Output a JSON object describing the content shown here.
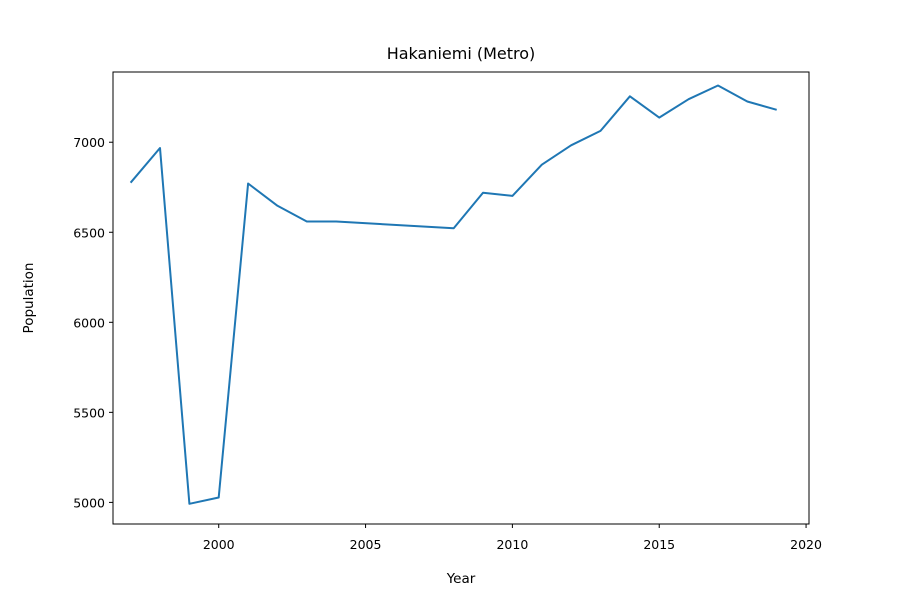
{
  "chart_data": {
    "type": "line",
    "title": "Hakaniemi (Metro)",
    "xlabel": "Year",
    "ylabel": "Population",
    "xlim": [
      1996.4,
      2020.1
    ],
    "ylim": [
      4880,
      7390
    ],
    "x_ticks": [
      2000,
      2005,
      2010,
      2015,
      2020
    ],
    "y_ticks": [
      5000,
      5500,
      6000,
      6500,
      7000
    ],
    "grid": false,
    "line_color": "#1f77b4",
    "series": [
      {
        "x": [
          1997,
          1998,
          1999,
          2000,
          2001,
          2002,
          2003,
          2004,
          2008,
          2009,
          2010,
          2011,
          2012,
          2013,
          2014,
          2015,
          2016,
          2017,
          2018,
          2019
        ],
        "y": [
          6775,
          6968,
          4992,
          5027,
          6771,
          6647,
          6560,
          6560,
          6522,
          6720,
          6702,
          6875,
          6983,
          7063,
          7255,
          7137,
          7239,
          7315,
          7226,
          7180
        ]
      }
    ]
  }
}
